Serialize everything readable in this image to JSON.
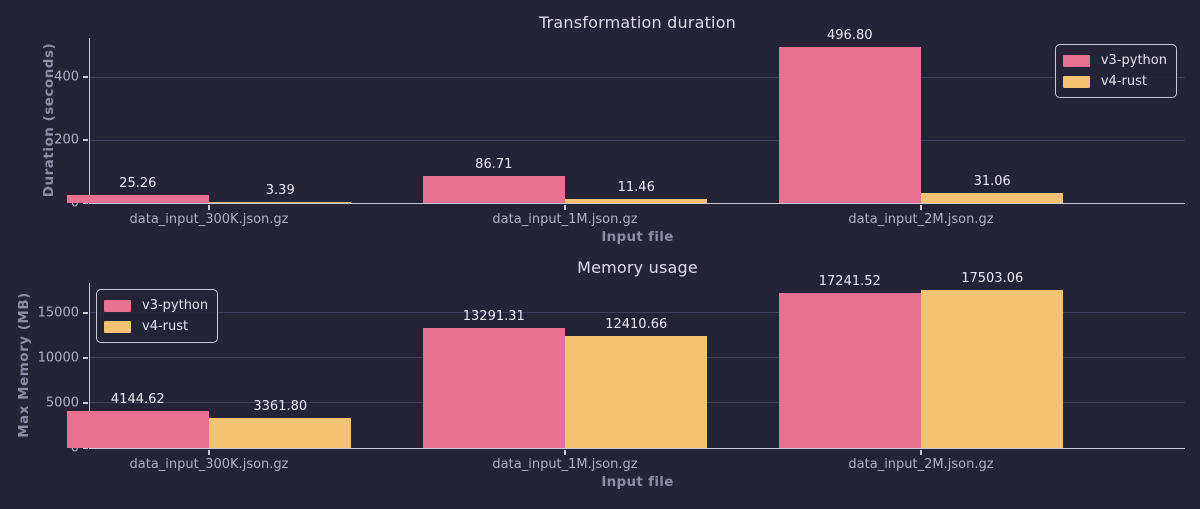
{
  "figure": {
    "background": "#252338"
  },
  "palette": {
    "v3_python": "#e7718f",
    "v4_rust": "#f5c173",
    "gridline": "#413e5e",
    "axis": "#c9c7d5"
  },
  "chart_data": [
    {
      "type": "bar",
      "title": "Transformation duration",
      "xlabel": "Input file",
      "ylabel": "Duration (seconds)",
      "categories": [
        "data_input_300K.json.gz",
        "data_input_1M.json.gz",
        "data_input_2M.json.gz"
      ],
      "series": [
        {
          "name": "v3-python",
          "color": "#e7718f",
          "values": [
            25.26,
            86.71,
            496.8
          ]
        },
        {
          "name": "v4-rust",
          "color": "#f5c173",
          "values": [
            3.39,
            11.46,
            31.06
          ]
        }
      ],
      "value_labels": [
        [
          "25.26",
          "86.71",
          "496.80"
        ],
        [
          "3.39",
          "11.46",
          "31.06"
        ]
      ],
      "ylim": [
        0,
        524
      ],
      "yticks": [
        0,
        200,
        400
      ],
      "grid": true,
      "legend_position": "upper right",
      "value_label_decimals": 2
    },
    {
      "type": "bar",
      "title": "Memory usage",
      "xlabel": "Input file",
      "ylabel": "Max Memory (MB)",
      "categories": [
        "data_input_300K.json.gz",
        "data_input_1M.json.gz",
        "data_input_2M.json.gz"
      ],
      "series": [
        {
          "name": "v3-python",
          "color": "#e7718f",
          "values": [
            4144.62,
            13291.31,
            17241.52
          ]
        },
        {
          "name": "v4-rust",
          "color": "#f5c173",
          "values": [
            3361.8,
            12410.66,
            17503.06
          ]
        }
      ],
      "value_labels": [
        [
          "4144.62",
          "13291.31",
          "17241.52"
        ],
        [
          "3361.80",
          "12410.66",
          "17503.06"
        ]
      ],
      "ylim": [
        0,
        18333
      ],
      "yticks": [
        0,
        5000,
        10000,
        15000
      ],
      "grid": true,
      "legend_position": "upper left",
      "value_label_decimals": 2
    }
  ]
}
